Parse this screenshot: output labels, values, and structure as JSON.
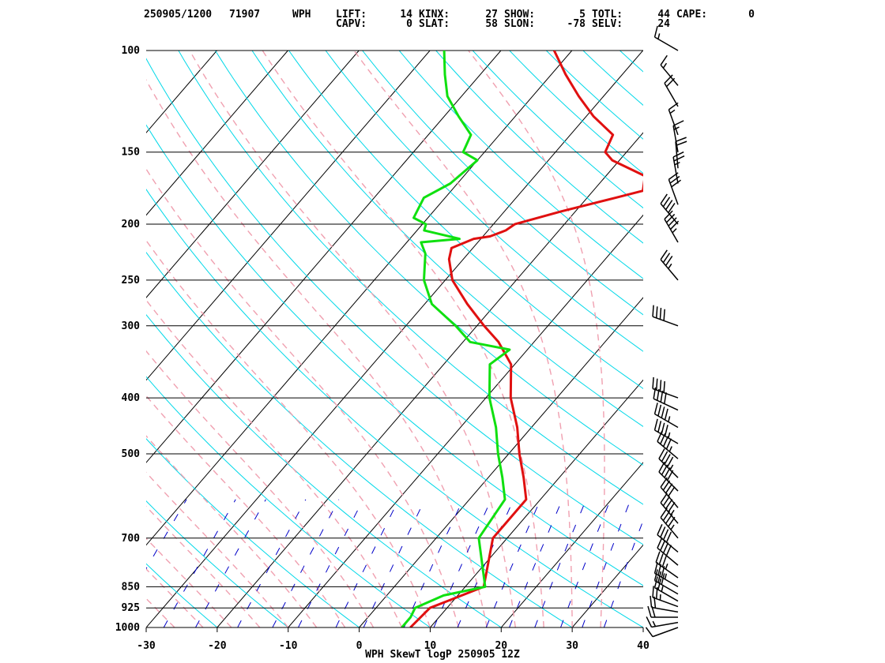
{
  "header": {
    "datetime": "250905/1200",
    "station_id": "71907",
    "station": "WPH",
    "indices": [
      {
        "label": "LIFT:",
        "value": "14"
      },
      {
        "label": "KINX:",
        "value": "27"
      },
      {
        "label": "SHOW:",
        "value": "5"
      },
      {
        "label": "TOTL:",
        "value": "44"
      },
      {
        "label": "CAPE:",
        "value": "0"
      },
      {
        "label": "CAPV:",
        "value": "0"
      },
      {
        "label": "SLAT:",
        "value": "58"
      },
      {
        "label": "SLON:",
        "value": "-78"
      },
      {
        "label": "SELV:",
        "value": "24"
      }
    ]
  },
  "footer_title": "WPH SkewT logP 250905 12Z",
  "colors": {
    "temperature": "#e01010",
    "dewpoint": "#10e010",
    "isotherm": "#000000",
    "dry_adiabat": "#00d8e8",
    "moist_adiabat": "#f0a0b0",
    "mixing_ratio": "#0000c8",
    "wind": "#000000"
  },
  "chart_data": {
    "type": "line",
    "title": "WPH SkewT logP 250905 12Z",
    "xlabel": "",
    "ylabel": "",
    "x_ticks": [
      -30,
      -20,
      -10,
      0,
      10,
      20,
      30,
      40
    ],
    "pressure_ticks": [
      100,
      150,
      200,
      250,
      300,
      400,
      500,
      700,
      850,
      925,
      1000
    ],
    "xlim": [
      -30,
      40
    ],
    "pressure_range": [
      1000,
      100
    ],
    "y_scale": "log",
    "series": [
      {
        "key": "temperature",
        "points": [
          [
            1000,
            7.2
          ],
          [
            925,
            7.6
          ],
          [
            900,
            9.2
          ],
          [
            850,
            12.6
          ],
          [
            700,
            8.0
          ],
          [
            600,
            8.0
          ],
          [
            550,
            5.0
          ],
          [
            500,
            1.5
          ],
          [
            450,
            -2.0
          ],
          [
            400,
            -6.5
          ],
          [
            350,
            -10.5
          ],
          [
            320,
            -15.0
          ],
          [
            300,
            -19.0
          ],
          [
            275,
            -24.0
          ],
          [
            250,
            -29.0
          ],
          [
            230,
            -32.0
          ],
          [
            220,
            -33.0
          ],
          [
            212,
            -31.0
          ],
          [
            210,
            -29.0
          ],
          [
            205,
            -27.5
          ],
          [
            200,
            -27.0
          ],
          [
            190,
            -22.0
          ],
          [
            180,
            -16.0
          ],
          [
            175,
            -13.0
          ],
          [
            165,
            -14.5
          ],
          [
            155,
            -21.0
          ],
          [
            150,
            -23.0
          ],
          [
            140,
            -24.0
          ],
          [
            130,
            -29.0
          ],
          [
            120,
            -33.5
          ],
          [
            110,
            -38.0
          ],
          [
            100,
            -42.5
          ]
        ]
      },
      {
        "key": "dewpoint",
        "points": [
          [
            1000,
            6.0
          ],
          [
            960,
            6.0
          ],
          [
            925,
            5.5
          ],
          [
            880,
            8.0
          ],
          [
            850,
            12.8
          ],
          [
            700,
            6.0
          ],
          [
            600,
            5.0
          ],
          [
            550,
            2.0
          ],
          [
            500,
            -1.5
          ],
          [
            450,
            -5.0
          ],
          [
            400,
            -9.5
          ],
          [
            350,
            -13.5
          ],
          [
            330,
            -12.5
          ],
          [
            320,
            -19.0
          ],
          [
            300,
            -23.0
          ],
          [
            275,
            -29.0
          ],
          [
            250,
            -33.0
          ],
          [
            225,
            -36.0
          ],
          [
            215,
            -38.0
          ],
          [
            212,
            -33.0
          ],
          [
            205,
            -39.0
          ],
          [
            200,
            -39.5
          ],
          [
            195,
            -42.0
          ],
          [
            180,
            -43.0
          ],
          [
            170,
            -41.0
          ],
          [
            155,
            -40.0
          ],
          [
            150,
            -43.0
          ],
          [
            140,
            -44.0
          ],
          [
            130,
            -48.0
          ],
          [
            120,
            -52.0
          ],
          [
            110,
            -55.0
          ],
          [
            100,
            -58.0
          ]
        ]
      }
    ],
    "winds": [
      {
        "p": 1000,
        "dir": 250,
        "spd": 10
      },
      {
        "p": 980,
        "dir": 260,
        "spd": 15
      },
      {
        "p": 960,
        "dir": 270,
        "spd": 20
      },
      {
        "p": 940,
        "dir": 280,
        "spd": 20
      },
      {
        "p": 920,
        "dir": 290,
        "spd": 25
      },
      {
        "p": 900,
        "dir": 300,
        "spd": 25
      },
      {
        "p": 875,
        "dir": 300,
        "spd": 30
      },
      {
        "p": 850,
        "dir": 300,
        "spd": 35
      },
      {
        "p": 820,
        "dir": 305,
        "spd": 35
      },
      {
        "p": 780,
        "dir": 310,
        "spd": 40
      },
      {
        "p": 740,
        "dir": 310,
        "spd": 40
      },
      {
        "p": 700,
        "dir": 320,
        "spd": 45
      },
      {
        "p": 660,
        "dir": 320,
        "spd": 45
      },
      {
        "p": 620,
        "dir": 320,
        "spd": 40
      },
      {
        "p": 580,
        "dir": 315,
        "spd": 40
      },
      {
        "p": 550,
        "dir": 315,
        "spd": 45
      },
      {
        "p": 510,
        "dir": 310,
        "spd": 45
      },
      {
        "p": 480,
        "dir": 300,
        "spd": 45
      },
      {
        "p": 450,
        "dir": 300,
        "spd": 45
      },
      {
        "p": 420,
        "dir": 295,
        "spd": 40
      },
      {
        "p": 400,
        "dir": 290,
        "spd": 40
      },
      {
        "p": 300,
        "dir": 290,
        "spd": 40
      },
      {
        "p": 250,
        "dir": 320,
        "spd": 35
      },
      {
        "p": 215,
        "dir": 330,
        "spd": 45
      },
      {
        "p": 200,
        "dir": 320,
        "spd": 40
      },
      {
        "p": 185,
        "dir": 340,
        "spd": 30
      },
      {
        "p": 170,
        "dir": 350,
        "spd": 25
      },
      {
        "p": 160,
        "dir": 355,
        "spd": 20
      },
      {
        "p": 150,
        "dir": 350,
        "spd": 15
      },
      {
        "p": 140,
        "dir": 340,
        "spd": 15
      },
      {
        "p": 125,
        "dir": 330,
        "spd": 20
      },
      {
        "p": 115,
        "dir": 320,
        "spd": 15
      },
      {
        "p": 100,
        "dir": 300,
        "spd": 15
      }
    ]
  }
}
